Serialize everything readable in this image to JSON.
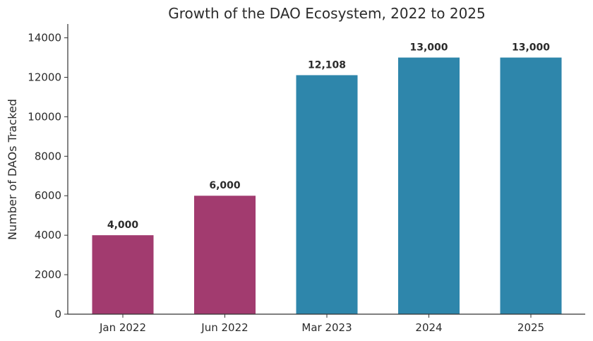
{
  "chart_data": {
    "type": "bar",
    "title": "Growth of the DAO Ecosystem, 2022 to 2025",
    "xlabel": "",
    "ylabel": "Number of DAOs Tracked",
    "categories": [
      "Jan 2022",
      "Jun 2022",
      "Mar 2023",
      "2024",
      "2025"
    ],
    "values": [
      4000,
      6000,
      12108,
      13000,
      13000
    ],
    "data_labels": [
      "4,000",
      "6,000",
      "12,108",
      "13,000",
      "13,000"
    ],
    "bar_colors": [
      "#a23b6f",
      "#a23b6f",
      "#2e86ab",
      "#2e86ab",
      "#2e86ab"
    ],
    "ylim": [
      0,
      14700
    ],
    "yticks": [
      0,
      2000,
      4000,
      6000,
      8000,
      10000,
      12000,
      14000
    ],
    "grid": false,
    "legend": "none"
  }
}
